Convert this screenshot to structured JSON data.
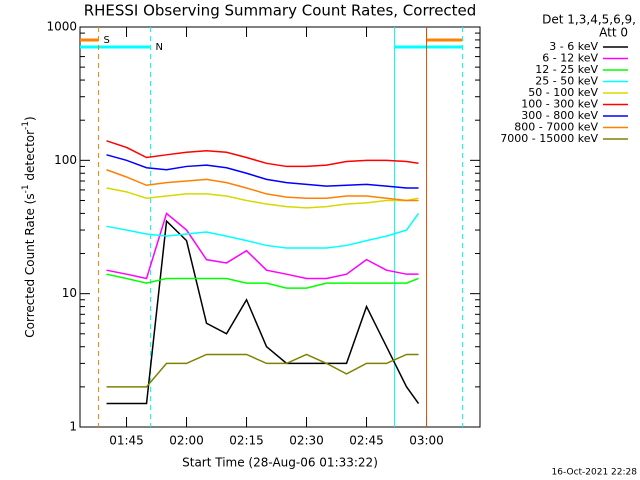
{
  "chart_data": {
    "type": "line",
    "title": "RHESSI Observing Summary Count Rates, Corrected",
    "x_label": "Start Time (28-Aug-06 01:33:22)",
    "y_label": [
      "Corrected Count Rate (s",
      "-1",
      " detector",
      "-1",
      ")"
    ],
    "legend_header": [
      "Det 1,3,4,5,6,9,",
      "Att 0"
    ],
    "footer": "16-Oct-2021 22:28",
    "log_y": true,
    "xlim": [
      "01:33:22",
      "03:13:22"
    ],
    "xticks": [
      "01:45",
      "02:00",
      "02:15",
      "02:30",
      "02:45",
      "03:00"
    ],
    "ylim": [
      1,
      1000
    ],
    "yticks": [
      1,
      10,
      100,
      1000
    ],
    "x": [
      "01:40",
      "01:45",
      "01:50",
      "01:55",
      "02:00",
      "02:05",
      "02:10",
      "02:15",
      "02:20",
      "02:25",
      "02:30",
      "02:35",
      "02:40",
      "02:45",
      "02:50",
      "02:55",
      "02:58"
    ],
    "series": [
      {
        "name": "3 - 6 keV",
        "color": "#000000",
        "values": [
          1.5,
          1.5,
          1.5,
          35,
          25,
          6,
          5,
          9,
          4,
          3,
          3,
          3,
          3,
          8,
          4,
          2,
          1.5
        ]
      },
      {
        "name": "6 - 12 keV",
        "color": "#ff00ff",
        "values": [
          15,
          14,
          13,
          40,
          30,
          18,
          17,
          21,
          15,
          14,
          13,
          13,
          14,
          18,
          15,
          14,
          14
        ]
      },
      {
        "name": "12 - 25 keV",
        "color": "#00ff00",
        "values": [
          14,
          13,
          12,
          13,
          13,
          13,
          13,
          12,
          12,
          11,
          11,
          12,
          12,
          12,
          12,
          12,
          13
        ]
      },
      {
        "name": "25 - 50 keV",
        "color": "#00ffff",
        "values": [
          32,
          30,
          28,
          27,
          28,
          29,
          27,
          25,
          23,
          22,
          22,
          22,
          23,
          25,
          27,
          30,
          40
        ]
      },
      {
        "name": "50 - 100 keV",
        "color": "#d8d800",
        "values": [
          62,
          58,
          52,
          54,
          56,
          56,
          54,
          50,
          47,
          45,
          44,
          45,
          47,
          48,
          50,
          50,
          52
        ]
      },
      {
        "name": "100 - 300 keV",
        "color": "#ff0000",
        "values": [
          140,
          125,
          105,
          110,
          115,
          118,
          115,
          105,
          95,
          90,
          90,
          92,
          98,
          100,
          100,
          98,
          95
        ]
      },
      {
        "name": "300 - 800 keV",
        "color": "#0000ff",
        "values": [
          110,
          100,
          88,
          85,
          90,
          92,
          88,
          80,
          72,
          68,
          66,
          64,
          65,
          66,
          64,
          62,
          62
        ]
      },
      {
        "name": "800 - 7000 keV",
        "color": "#ff8000",
        "values": [
          85,
          75,
          65,
          68,
          70,
          72,
          68,
          62,
          56,
          53,
          52,
          52,
          54,
          54,
          52,
          50,
          50
        ]
      },
      {
        "name": "7000 - 15000 keV",
        "color": "#808000",
        "values": [
          2,
          2,
          2,
          3,
          3,
          3.5,
          3.5,
          3.5,
          3,
          3,
          3.5,
          3,
          2.5,
          3,
          3,
          3.5,
          3.5
        ]
      }
    ],
    "bands": [
      {
        "label": "S",
        "color": "#ff8000",
        "start": "01:33:22",
        "end": "01:38",
        "row": 0
      },
      {
        "label": "N",
        "color": "#00ffff",
        "start": "01:33:22",
        "end": "01:51",
        "row": 1
      },
      {
        "color": "#ff8000",
        "start": "03:00",
        "end": "03:09",
        "row": 0
      },
      {
        "color": "#00ffff",
        "start": "02:52",
        "end": "03:09",
        "row": 1
      }
    ],
    "events": [
      {
        "x": "01:38",
        "color": "#ff8000",
        "dashed": true
      },
      {
        "x": "01:51",
        "color": "#00ffff",
        "dashed": true
      },
      {
        "x": "02:52",
        "color": "#00ffff",
        "dashed": false
      },
      {
        "x": "03:00",
        "color": "#e05000",
        "dashed": false
      },
      {
        "x": "03:09",
        "color": "#00ffff",
        "dashed": true
      }
    ]
  }
}
